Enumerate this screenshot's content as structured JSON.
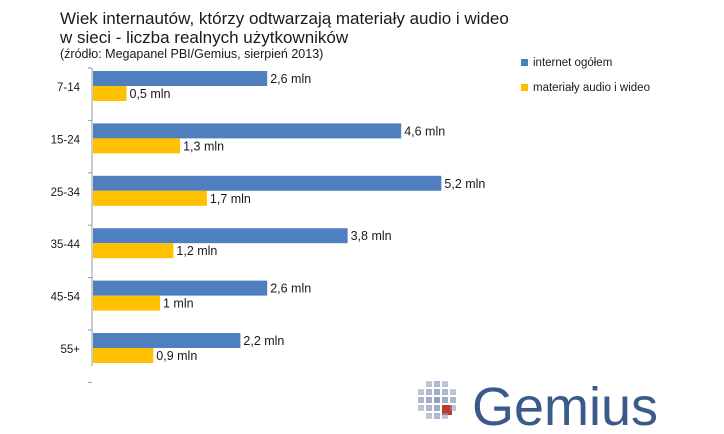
{
  "title_line1": "Wiek internautów, którzy odtwarzają materiały audio i wideo",
  "title_line2": "w sieci - liczba realnych użytkowników",
  "subtitle": "(źródło: Megapanel PBI/Gemius, sierpień 2013)",
  "logo": {
    "text": "Gemius"
  },
  "colors": {
    "internet": "#4f7fbf",
    "audio_video": "#ffc000",
    "axis": "#999999",
    "logo_blue": "#3a5a8a",
    "logo_red": "#c0392b"
  },
  "chart_data": {
    "type": "bar",
    "orientation": "horizontal",
    "categories": [
      "7-14",
      "15-24",
      "25-34",
      "35-44",
      "45-54",
      "55+"
    ],
    "series": [
      {
        "name": "internet ogółem",
        "values": [
          2.6,
          4.6,
          5.2,
          3.8,
          2.6,
          2.2
        ],
        "labels": [
          "2,6 mln",
          "4,6 mln",
          "5,2 mln",
          "3,8 mln",
          "2,6 mln",
          "2,2 mln"
        ]
      },
      {
        "name": "materiały audio i wideo",
        "values": [
          0.5,
          1.3,
          1.7,
          1.2,
          1.0,
          0.9
        ],
        "labels": [
          "0,5 mln",
          "1,3 mln",
          "1,7 mln",
          "1,2 mln",
          "1 mln",
          "0,9 mln"
        ]
      }
    ],
    "xlim": [
      0,
      6.3
    ],
    "grid": false,
    "legend_position": "top-right"
  }
}
